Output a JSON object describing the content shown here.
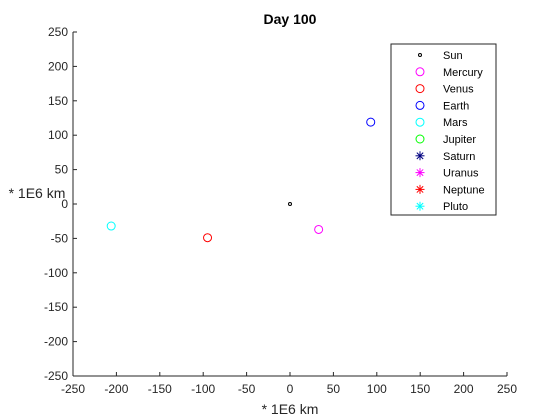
{
  "figure": {
    "background": "#ffffff"
  },
  "chart_data": {
    "type": "scatter",
    "title": "Day 100",
    "xlabel": "* 1E6 km",
    "ylabel": "* 1E6 km",
    "xlim": [
      -250,
      250
    ],
    "ylim": [
      -250,
      250
    ],
    "xticks": [
      -250,
      -200,
      -150,
      -100,
      -50,
      0,
      50,
      100,
      150,
      200,
      250
    ],
    "yticks": [
      250,
      200,
      150,
      100,
      50,
      0,
      -50,
      -100,
      -150,
      -200,
      -250
    ],
    "grid": false,
    "legend_position": "top-right",
    "series": [
      {
        "name": "Sun",
        "marker": "point",
        "color": "#000000",
        "points": [
          [
            0,
            0
          ]
        ]
      },
      {
        "name": "Mercury",
        "marker": "circle",
        "color": "#ff00ff",
        "points": [
          [
            33,
            -37
          ]
        ]
      },
      {
        "name": "Venus",
        "marker": "circle",
        "color": "#ff0000",
        "points": [
          [
            -95,
            -49
          ]
        ]
      },
      {
        "name": "Earth",
        "marker": "circle",
        "color": "#0000ff",
        "points": [
          [
            93,
            119
          ]
        ]
      },
      {
        "name": "Mars",
        "marker": "circle",
        "color": "#00ffff",
        "points": [
          [
            -206,
            -32
          ]
        ]
      },
      {
        "name": "Jupiter",
        "marker": "circle",
        "color": "#00ff00",
        "points": []
      },
      {
        "name": "Saturn",
        "marker": "asterisk",
        "color": "#000080",
        "points": []
      },
      {
        "name": "Uranus",
        "marker": "asterisk",
        "color": "#ff00ff",
        "points": []
      },
      {
        "name": "Neptune",
        "marker": "asterisk",
        "color": "#ff0000",
        "points": []
      },
      {
        "name": "Pluto",
        "marker": "asterisk",
        "color": "#00ffff",
        "points": []
      }
    ]
  }
}
